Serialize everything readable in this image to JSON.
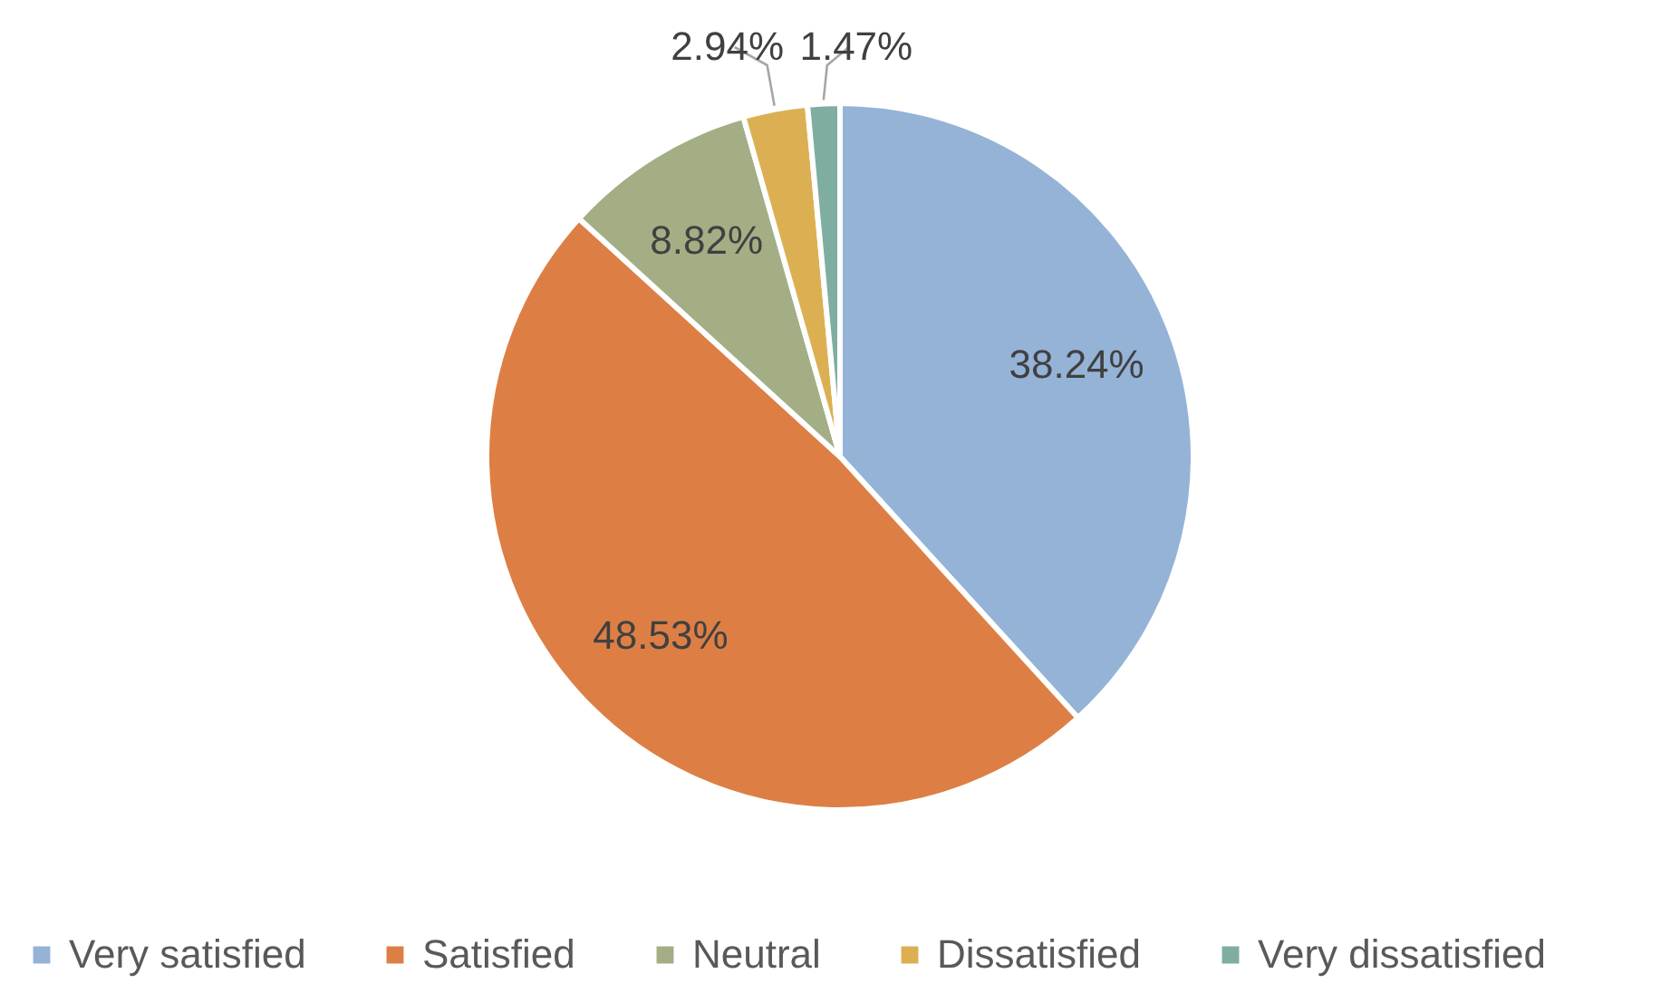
{
  "chart_data": {
    "type": "pie",
    "categories": [
      "Very satisfied",
      "Satisfied",
      "Neutral",
      "Dissatisfied",
      "Very dissatisfied"
    ],
    "values": [
      38.24,
      48.53,
      8.82,
      2.94,
      1.47
    ],
    "value_labels": [
      "38.24%",
      "48.53%",
      "8.82%",
      "2.94%",
      "1.47%"
    ],
    "colors": [
      "#95b3d7",
      "#dd7f45",
      "#a3ae85",
      "#dcb052",
      "#7fada1"
    ],
    "legend": "bottom"
  }
}
